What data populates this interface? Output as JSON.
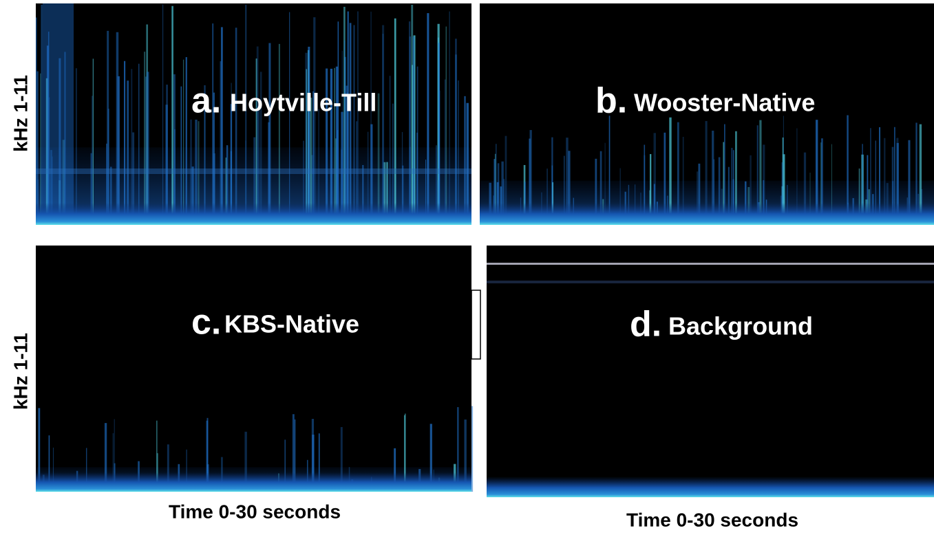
{
  "y_axis_labels": [
    "kHz 1-11",
    "kHz 1-11"
  ],
  "x_axis_labels": [
    "Time 0-30 seconds",
    "Time 0-30 seconds"
  ],
  "panels": [
    {
      "letter": "a.",
      "name": "Hoytville-Till"
    },
    {
      "letter": "b.",
      "name": "Wooster-Native"
    },
    {
      "letter": "c.",
      "name": "KBS-Native"
    },
    {
      "letter": "d.",
      "name": "Background"
    }
  ]
}
